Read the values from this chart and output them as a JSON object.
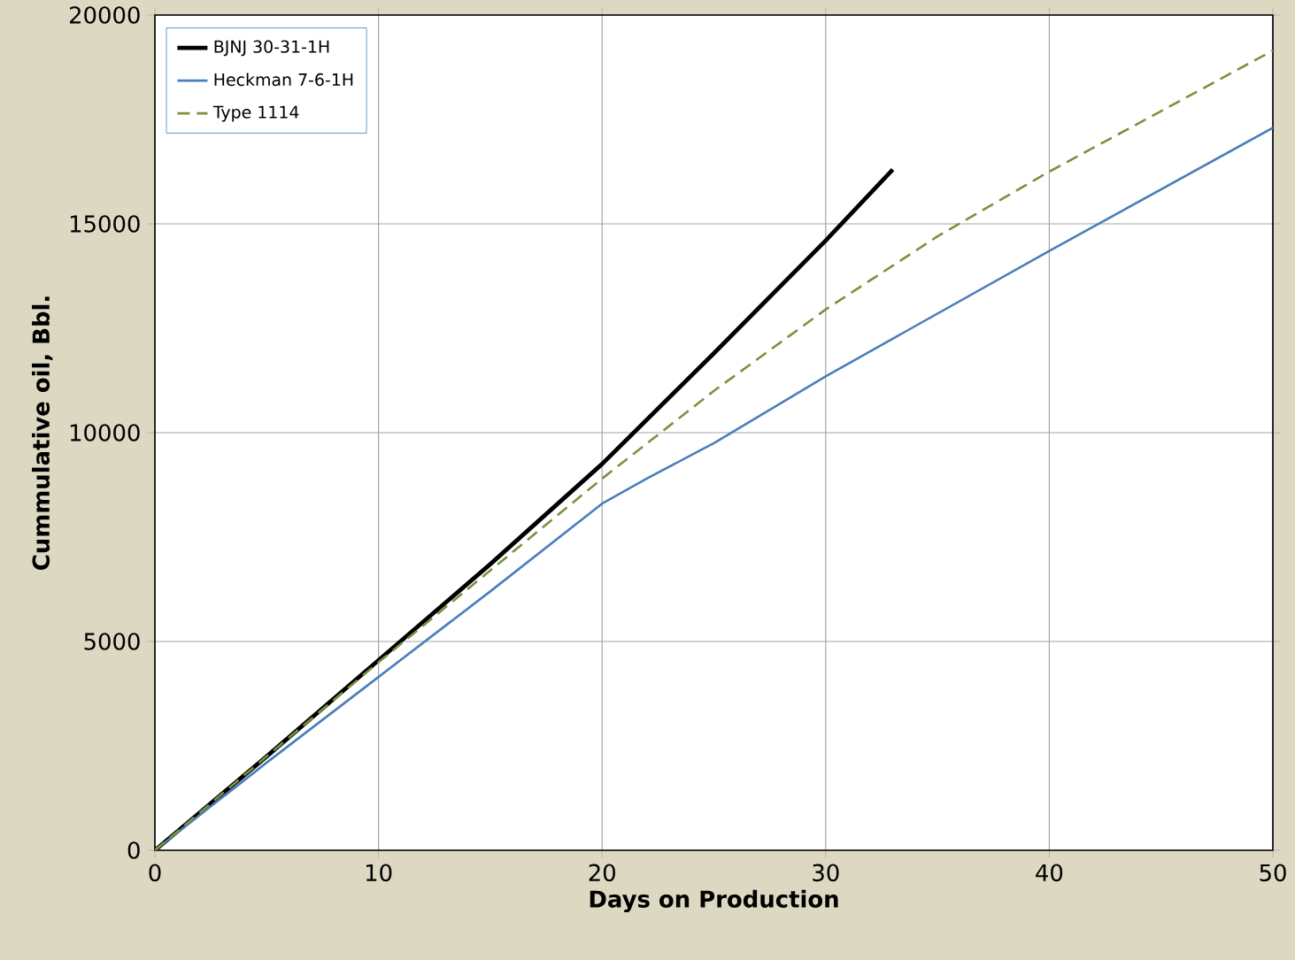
{
  "chart_data": {
    "type": "line",
    "xlabel": "Days on Production",
    "ylabel": "Cummulative oil, Bbl.",
    "xlim": [
      0,
      50
    ],
    "ylim": [
      0,
      20000
    ],
    "xticks": [
      0,
      10,
      20,
      30,
      40,
      50
    ],
    "yticks": [
      0,
      5000,
      10000,
      15000,
      20000
    ],
    "grid": true,
    "legend": "top left",
    "marker": "none",
    "series": [
      {
        "name": "BJNJ 30-31-1H",
        "color": "#000000",
        "line_style": "solid",
        "x": [
          0,
          5,
          10,
          15,
          20,
          25,
          30,
          33
        ],
        "values": [
          0,
          2250,
          4550,
          6850,
          9250,
          11900,
          14600,
          16300
        ]
      },
      {
        "name": "Heckman 7-6-1H",
        "color": "#4a7ebb",
        "line_style": "solid",
        "x": [
          0,
          5,
          10,
          15,
          20,
          22,
          25,
          30,
          40,
          50
        ],
        "values": [
          0,
          2100,
          4150,
          6200,
          8300,
          8900,
          9750,
          11350,
          14350,
          17300
        ]
      },
      {
        "name": "Type 1114",
        "color": "#77933c",
        "line_style": "dashed",
        "x": [
          0,
          5,
          10,
          15,
          20,
          25,
          30,
          35,
          40,
          45,
          50
        ],
        "values": [
          0,
          2250,
          4500,
          6700,
          8900,
          11000,
          12950,
          14700,
          16250,
          17700,
          19150
        ]
      }
    ]
  }
}
